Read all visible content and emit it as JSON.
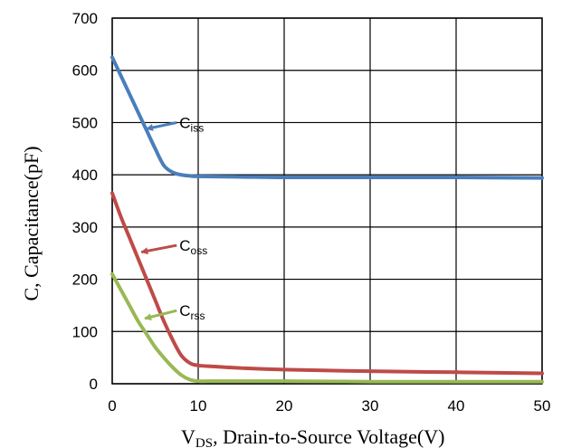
{
  "chart_data": {
    "type": "line",
    "title": "",
    "xlabel_main": "V",
    "xlabel_sub": "DS",
    "xlabel_rest": ", Drain-to-Source Voltage(V)",
    "ylabel": "C, Capacitance(pF)",
    "xlim": [
      0,
      50
    ],
    "ylim": [
      0,
      700
    ],
    "xticks": [
      "0",
      "10",
      "20",
      "30",
      "40",
      "50"
    ],
    "yticks": [
      "0",
      "100",
      "200",
      "300",
      "400",
      "500",
      "600",
      "700"
    ],
    "grid": true,
    "legend": "none",
    "series": [
      {
        "name_main": "C",
        "name_sub": "iss",
        "color": "#4a7ebb",
        "x": [
          0,
          1,
          2,
          3,
          4,
          5,
          6,
          7,
          8,
          9,
          10,
          15,
          20,
          30,
          40,
          50
        ],
        "y": [
          625,
          590,
          555,
          520,
          485,
          450,
          418,
          405,
          400,
          398,
          397,
          396,
          395,
          395,
          395,
          394
        ],
        "label_at": [
          4,
          488
        ],
        "arrow_from": [
          7.5,
          500
        ]
      },
      {
        "name_main": "C",
        "name_sub": "oss",
        "color": "#be4b48",
        "x": [
          0,
          1,
          2,
          3,
          4,
          5,
          6,
          7,
          8,
          9,
          10,
          12,
          15,
          20,
          30,
          40,
          50
        ],
        "y": [
          365,
          320,
          280,
          240,
          200,
          160,
          120,
          85,
          55,
          40,
          35,
          33,
          30,
          27,
          24,
          22,
          20
        ],
        "label_at": [
          3.4,
          252
        ],
        "arrow_from": [
          7.5,
          265
        ]
      },
      {
        "name_main": "C",
        "name_sub": "rss",
        "color": "#98b954",
        "x": [
          0,
          1,
          2,
          3,
          4,
          5,
          6,
          7,
          8,
          9,
          10,
          12,
          15,
          20,
          30,
          40,
          50
        ],
        "y": [
          210,
          180,
          150,
          120,
          95,
          70,
          50,
          32,
          17,
          8,
          5,
          5,
          5,
          5,
          4,
          4,
          4
        ],
        "label_at": [
          3.8,
          125
        ],
        "arrow_from": [
          7.5,
          140
        ]
      }
    ]
  }
}
